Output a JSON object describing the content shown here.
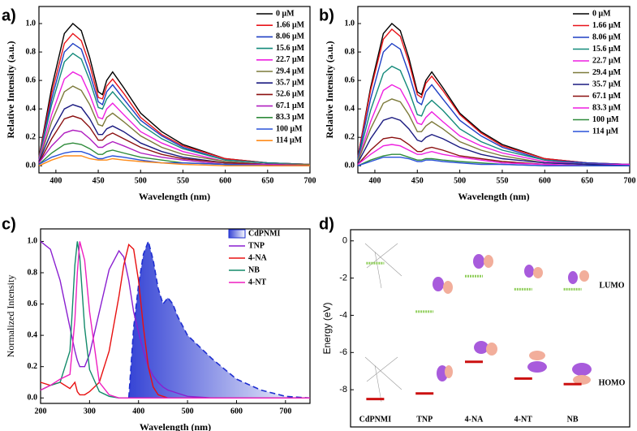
{
  "chart_data": [
    {
      "type": "line",
      "panel_label": "a)",
      "x_label": "Wavelength (nm)",
      "y_label": "Relative Intensity (a.u.)",
      "x": [
        380,
        395,
        410,
        420,
        430,
        440,
        450,
        455,
        460,
        467,
        480,
        500,
        525,
        550,
        600,
        650,
        700
      ],
      "xlim": [
        380,
        700
      ],
      "xticks": [
        400,
        450,
        500,
        550,
        600,
        650,
        700
      ],
      "ylim": [
        -0.05,
        1.12
      ],
      "yticks": [
        {
          "value": 0,
          "label": "0.0"
        },
        {
          "value": 0.2,
          "label": "0.2"
        },
        {
          "value": 0.4,
          "label": "0.4"
        },
        {
          "value": 0.6,
          "label": "0.6"
        },
        {
          "value": 0.8,
          "label": "0.8"
        },
        {
          "value": 1,
          "label": "1.0"
        }
      ],
      "series": [
        {
          "name": "0 μM",
          "color": "#000000",
          "values": [
            0.06,
            0.55,
            0.93,
            1.0,
            0.95,
            0.76,
            0.52,
            0.5,
            0.6,
            0.66,
            0.55,
            0.37,
            0.24,
            0.15,
            0.05,
            0.02,
            0.01
          ]
        },
        {
          "name": "1.66 μM",
          "color": "#e8141a",
          "values": [
            0.06,
            0.51,
            0.86,
            0.93,
            0.88,
            0.71,
            0.48,
            0.47,
            0.56,
            0.61,
            0.51,
            0.34,
            0.22,
            0.14,
            0.05,
            0.02,
            0.01
          ]
        },
        {
          "name": "8.06 μM",
          "color": "#1f3fc4",
          "values": [
            0.05,
            0.47,
            0.8,
            0.86,
            0.82,
            0.65,
            0.45,
            0.43,
            0.52,
            0.57,
            0.47,
            0.32,
            0.21,
            0.13,
            0.04,
            0.02,
            0.01
          ]
        },
        {
          "name": "15.6 μM",
          "color": "#138a7a",
          "values": [
            0.05,
            0.43,
            0.73,
            0.79,
            0.75,
            0.6,
            0.41,
            0.4,
            0.47,
            0.52,
            0.43,
            0.29,
            0.19,
            0.12,
            0.04,
            0.02,
            0.01
          ]
        },
        {
          "name": "22.7 μM",
          "color": "#ee1ee0",
          "values": [
            0.04,
            0.36,
            0.61,
            0.66,
            0.63,
            0.5,
            0.34,
            0.33,
            0.4,
            0.44,
            0.36,
            0.24,
            0.16,
            0.1,
            0.03,
            0.01,
            0.01
          ]
        },
        {
          "name": "29.4 μM",
          "color": "#7c7a3a",
          "values": [
            0.03,
            0.31,
            0.52,
            0.56,
            0.53,
            0.43,
            0.29,
            0.28,
            0.34,
            0.37,
            0.31,
            0.21,
            0.13,
            0.08,
            0.03,
            0.01,
            0.01
          ]
        },
        {
          "name": "35.7 μM",
          "color": "#1a1a80",
          "values": [
            0.03,
            0.24,
            0.4,
            0.43,
            0.41,
            0.33,
            0.22,
            0.22,
            0.26,
            0.28,
            0.24,
            0.16,
            0.1,
            0.06,
            0.02,
            0.01,
            0.0
          ]
        },
        {
          "name": "52.6 μM",
          "color": "#8b1010",
          "values": [
            0.02,
            0.19,
            0.33,
            0.35,
            0.33,
            0.27,
            0.18,
            0.18,
            0.21,
            0.23,
            0.19,
            0.13,
            0.08,
            0.05,
            0.02,
            0.01,
            0.0
          ]
        },
        {
          "name": "67.1 μM",
          "color": "#b01fc0",
          "values": [
            0.02,
            0.14,
            0.23,
            0.25,
            0.24,
            0.19,
            0.13,
            0.13,
            0.15,
            0.17,
            0.14,
            0.09,
            0.06,
            0.04,
            0.01,
            0.01,
            0.0
          ]
        },
        {
          "name": "83.3 μM",
          "color": "#2e8b3a",
          "values": [
            0.01,
            0.09,
            0.15,
            0.16,
            0.15,
            0.12,
            0.08,
            0.08,
            0.1,
            0.11,
            0.09,
            0.06,
            0.04,
            0.02,
            0.01,
            0.0,
            0.0
          ]
        },
        {
          "name": "100 μM",
          "color": "#2a52d8",
          "values": [
            0.01,
            0.06,
            0.09,
            0.1,
            0.1,
            0.08,
            0.05,
            0.05,
            0.06,
            0.07,
            0.06,
            0.04,
            0.02,
            0.02,
            0.01,
            0.0,
            0.0
          ]
        },
        {
          "name": "114 μM",
          "color": "#ff8c1a",
          "values": [
            0.0,
            0.04,
            0.07,
            0.07,
            0.07,
            0.05,
            0.04,
            0.04,
            0.04,
            0.05,
            0.04,
            0.03,
            0.02,
            0.01,
            0.0,
            0.0,
            0.0
          ]
        }
      ]
    },
    {
      "type": "line",
      "panel_label": "b)",
      "x_label": "Wavelength (nm)",
      "y_label": "Relative Intensity (a.u.)",
      "x": [
        380,
        395,
        410,
        420,
        430,
        440,
        450,
        455,
        460,
        467,
        480,
        500,
        525,
        550,
        600,
        650,
        700
      ],
      "xlim": [
        380,
        700
      ],
      "xticks": [
        400,
        450,
        500,
        550,
        600,
        650,
        700
      ],
      "ylim": [
        -0.05,
        1.12
      ],
      "yticks": [
        {
          "value": 0,
          "label": "0.0"
        },
        {
          "value": 0.2,
          "label": "0.2"
        },
        {
          "value": 0.4,
          "label": "0.4"
        },
        {
          "value": 0.6,
          "label": "0.6"
        },
        {
          "value": 0.8,
          "label": "0.8"
        },
        {
          "value": 1,
          "label": "1.0"
        }
      ],
      "series": [
        {
          "name": "0 μM",
          "color": "#000000",
          "values": [
            0.06,
            0.55,
            0.93,
            1.0,
            0.95,
            0.76,
            0.52,
            0.5,
            0.6,
            0.66,
            0.55,
            0.37,
            0.24,
            0.15,
            0.05,
            0.02,
            0.01
          ]
        },
        {
          "name": "1.66 μM",
          "color": "#e8141a",
          "values": [
            0.06,
            0.53,
            0.89,
            0.96,
            0.91,
            0.73,
            0.5,
            0.48,
            0.58,
            0.63,
            0.53,
            0.36,
            0.23,
            0.14,
            0.05,
            0.02,
            0.01
          ]
        },
        {
          "name": "8.06 μM",
          "color": "#1f3fc4",
          "values": [
            0.05,
            0.47,
            0.8,
            0.86,
            0.82,
            0.65,
            0.45,
            0.43,
            0.52,
            0.57,
            0.47,
            0.32,
            0.21,
            0.13,
            0.04,
            0.02,
            0.01
          ]
        },
        {
          "name": "15.6 μM",
          "color": "#138a7a",
          "values": [
            0.04,
            0.39,
            0.65,
            0.7,
            0.67,
            0.53,
            0.36,
            0.35,
            0.42,
            0.46,
            0.39,
            0.26,
            0.17,
            0.11,
            0.04,
            0.01,
            0.01
          ]
        },
        {
          "name": "22.7 μM",
          "color": "#ee1ee0",
          "values": [
            0.03,
            0.31,
            0.53,
            0.57,
            0.54,
            0.43,
            0.3,
            0.29,
            0.34,
            0.38,
            0.31,
            0.21,
            0.14,
            0.09,
            0.03,
            0.01,
            0.01
          ]
        },
        {
          "name": "29.4 μM",
          "color": "#7c7a3a",
          "values": [
            0.03,
            0.26,
            0.44,
            0.47,
            0.45,
            0.36,
            0.24,
            0.24,
            0.28,
            0.31,
            0.26,
            0.17,
            0.11,
            0.07,
            0.02,
            0.01,
            0.0
          ]
        },
        {
          "name": "35.7 μM",
          "color": "#1a1a80",
          "values": [
            0.02,
            0.19,
            0.32,
            0.34,
            0.32,
            0.26,
            0.18,
            0.17,
            0.2,
            0.22,
            0.19,
            0.13,
            0.08,
            0.05,
            0.02,
            0.01,
            0.0
          ]
        },
        {
          "name": "67.1 μM",
          "color": "#8b1010",
          "values": [
            0.01,
            0.11,
            0.19,
            0.2,
            0.19,
            0.15,
            0.1,
            0.1,
            0.12,
            0.13,
            0.11,
            0.07,
            0.05,
            0.03,
            0.01,
            0.0,
            0.0
          ]
        },
        {
          "name": "83.3 μM",
          "color": "#ee1ee0",
          "values": [
            0.01,
            0.08,
            0.14,
            0.15,
            0.14,
            0.11,
            0.08,
            0.08,
            0.09,
            0.1,
            0.08,
            0.06,
            0.04,
            0.02,
            0.01,
            0.0,
            0.0
          ]
        },
        {
          "name": "100 μM",
          "color": "#2e8b3a",
          "values": [
            0.0,
            0.04,
            0.07,
            0.08,
            0.08,
            0.06,
            0.04,
            0.04,
            0.05,
            0.05,
            0.04,
            0.03,
            0.02,
            0.01,
            0.0,
            0.0,
            0.0
          ]
        },
        {
          "name": "114 μM",
          "color": "#2a52d8",
          "values": [
            0.0,
            0.03,
            0.06,
            0.06,
            0.06,
            0.05,
            0.03,
            0.03,
            0.04,
            0.04,
            0.03,
            0.02,
            0.01,
            0.01,
            0.0,
            0.0,
            0.0
          ]
        }
      ]
    },
    {
      "type": "line",
      "panel_label": "c)",
      "x_label": "Wavelength (nm)",
      "y_label": "Normalized Intensity",
      "x": [
        200,
        220,
        240,
        260,
        270,
        275,
        280,
        290,
        300,
        320,
        340,
        360,
        370,
        380,
        390,
        400,
        410,
        420,
        430,
        440,
        450,
        460,
        470,
        480,
        500,
        550,
        600,
        650,
        700,
        750
      ],
      "xlim": [
        200,
        750
      ],
      "xticks": [
        200,
        300,
        400,
        500,
        600,
        700
      ],
      "ylim": [
        -0.035,
        1.08
      ],
      "yticks": [
        {
          "value": 0,
          "label": "0.0"
        },
        {
          "value": 0.2,
          "label": "0.2"
        },
        {
          "value": 0.4,
          "label": "0.4"
        },
        {
          "value": 0.6,
          "label": "0.6"
        },
        {
          "value": 0.8,
          "label": "0.8"
        },
        {
          "value": 1,
          "label": "1.0"
        }
      ],
      "series": [
        {
          "name": "CdPNMI",
          "color": "#1f2fd0",
          "dash": true,
          "area": true,
          "values": [
            null,
            null,
            null,
            null,
            null,
            null,
            null,
            null,
            null,
            null,
            null,
            null,
            null,
            0,
            0.45,
            0.72,
            0.92,
            1.0,
            0.88,
            0.7,
            0.6,
            0.64,
            0.6,
            0.52,
            0.4,
            0.25,
            0.12,
            0.05,
            0.01,
            0
          ]
        },
        {
          "name": "TNP",
          "color": "#8a1fd0",
          "values": [
            1.0,
            0.95,
            0.75,
            0.45,
            0.3,
            0.24,
            0.2,
            0.2,
            0.28,
            0.55,
            0.82,
            0.94,
            0.9,
            0.75,
            0.55,
            0.42,
            0.3,
            0.2,
            0.14,
            0.1,
            0.07,
            0.05,
            0.04,
            0.03,
            0.01,
            0,
            0,
            0,
            0,
            0
          ]
        },
        {
          "name": "4-NA",
          "color": "#e81010",
          "values": [
            0.1,
            0.08,
            0.1,
            0.06,
            0.1,
            0.04,
            0.02,
            0.02,
            0.04,
            0.1,
            0.3,
            0.65,
            0.85,
            0.98,
            0.95,
            0.75,
            0.45,
            0.2,
            0.07,
            0.02,
            0.01,
            0,
            0,
            0,
            0,
            0,
            0,
            0,
            0,
            0
          ]
        },
        {
          "name": "NB",
          "color": "#138a6a",
          "values": [
            0.05,
            0.08,
            0.1,
            0.3,
            0.85,
            1.0,
            0.9,
            0.45,
            0.18,
            0.04,
            0.01,
            0,
            0,
            0,
            0,
            0,
            0,
            0,
            0,
            0,
            0,
            0,
            0,
            0,
            0,
            0,
            0,
            0,
            0,
            0
          ]
        },
        {
          "name": "4-NT",
          "color": "#ee1ec0",
          "values": [
            0.05,
            0.08,
            0.12,
            0.15,
            0.5,
            0.8,
            1.0,
            0.88,
            0.55,
            0.1,
            0.02,
            0,
            0,
            0,
            0,
            0,
            0,
            0,
            0,
            0,
            0,
            0,
            0,
            0,
            0,
            0,
            0,
            0,
            0,
            0
          ]
        }
      ]
    },
    {
      "type": "level",
      "panel_label": "d)",
      "y_label": "Energy (eV)",
      "categories": [
        "CdPNMI",
        "TNP",
        "4-NA",
        "4-NT",
        "NB"
      ],
      "ylim": [
        -10,
        0.6
      ],
      "yticks": [
        0,
        -2,
        -4,
        -6,
        -8
      ],
      "series": [
        {
          "name": "LUMO",
          "color": "#8fce5a",
          "dash": true,
          "values": [
            -1.2,
            -3.8,
            -1.9,
            -2.6,
            -2.6
          ]
        },
        {
          "name": "HOMO",
          "color": "#cc1010",
          "values": [
            -8.5,
            -8.2,
            -6.5,
            -7.4,
            -7.7
          ]
        }
      ]
    }
  ]
}
